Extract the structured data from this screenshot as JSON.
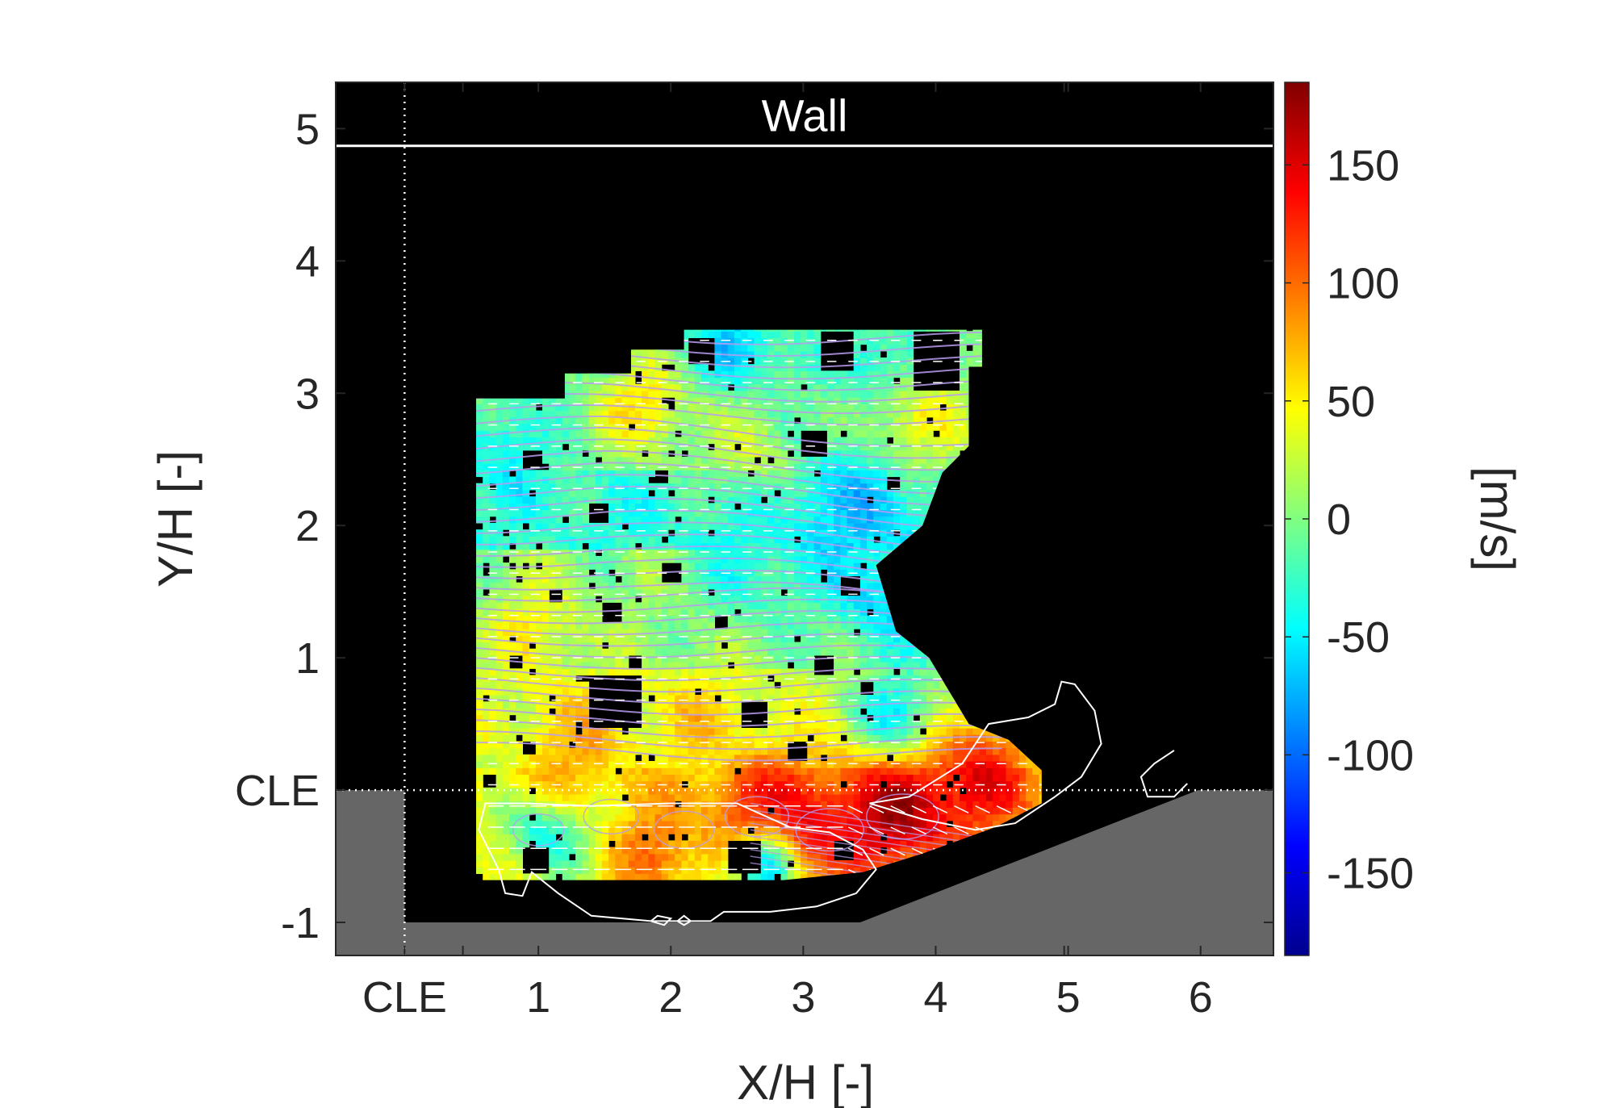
{
  "chart_data": {
    "type": "heatmap",
    "title": "",
    "xlabel": "X/H [-]",
    "ylabel": "Y/H [-]",
    "xlim": [
      -0.53,
      6.55
    ],
    "ylim": [
      -1.25,
      5.35
    ],
    "xticks": [
      {
        "value": -0.01,
        "label": "CLE"
      },
      {
        "value": 1,
        "label": "1"
      },
      {
        "value": 2,
        "label": "2"
      },
      {
        "value": 3,
        "label": "3"
      },
      {
        "value": 4,
        "label": "4"
      },
      {
        "value": 5,
        "label": "5"
      },
      {
        "value": 6,
        "label": "6"
      }
    ],
    "yticks": [
      {
        "value": -1,
        "label": "-1"
      },
      {
        "value": 0,
        "label": "CLE"
      },
      {
        "value": 1,
        "label": "1"
      },
      {
        "value": 2,
        "label": "2"
      },
      {
        "value": 3,
        "label": "3"
      },
      {
        "value": 4,
        "label": "4"
      },
      {
        "value": 5,
        "label": "5"
      }
    ],
    "wall": {
      "label": "Wall",
      "y": 4.87
    },
    "reference_lines": {
      "x": -0.01,
      "y": 0
    },
    "colorbar": {
      "label": "[m/s]",
      "limits": [
        -185,
        185
      ],
      "ticks": [
        -150,
        -100,
        -50,
        0,
        50,
        100,
        150
      ],
      "colormap": "jet"
    },
    "colors": {
      "background": "#000000",
      "solid": "#666666",
      "frame": "#262626",
      "streamlines": "#b89cf0",
      "vectors": "#ffffff",
      "contour": "#ffffff"
    },
    "field": {
      "x_range": [
        0.53,
        4.8
      ],
      "y_range": [
        -0.68,
        3.48
      ],
      "cell": 0.05,
      "outline": [
        [
          0.53,
          -0.68
        ],
        [
          0.53,
          2.96
        ],
        [
          1.2,
          2.96
        ],
        [
          1.2,
          3.15
        ],
        [
          1.7,
          3.15
        ],
        [
          1.7,
          3.33
        ],
        [
          2.1,
          3.33
        ],
        [
          2.1,
          3.48
        ],
        [
          4.35,
          3.48
        ],
        [
          4.35,
          3.2
        ],
        [
          4.25,
          3.2
        ],
        [
          4.25,
          2.6
        ],
        [
          4.05,
          2.4
        ],
        [
          3.9,
          2.0
        ],
        [
          3.55,
          1.7
        ],
        [
          3.7,
          1.2
        ],
        [
          3.95,
          1.0
        ],
        [
          4.25,
          0.5
        ],
        [
          4.55,
          0.38
        ],
        [
          4.8,
          0.15
        ],
        [
          4.8,
          -0.1
        ],
        [
          4.45,
          -0.28
        ],
        [
          3.9,
          -0.48
        ],
        [
          3.45,
          -0.62
        ],
        [
          2.85,
          -0.68
        ],
        [
          0.53,
          -0.68
        ]
      ],
      "bands": [
        {
          "y": [
            -0.68,
            -0.15
          ],
          "value": 45
        },
        {
          "y": [
            -0.15,
            0.15
          ],
          "value": 55
        },
        {
          "y": [
            0.15,
            0.9
          ],
          "value": 28
        },
        {
          "y": [
            0.9,
            1.8
          ],
          "value": 5
        },
        {
          "y": [
            1.8,
            2.4
          ],
          "value": -30
        },
        {
          "y": [
            2.4,
            3.48
          ],
          "value": -8
        }
      ],
      "features": [
        {
          "x": 4.3,
          "y": 0.08,
          "r": 0.45,
          "value": 140
        },
        {
          "x": 3.7,
          "y": -0.15,
          "r": 0.5,
          "value": 175
        },
        {
          "x": 3.0,
          "y": -0.3,
          "r": 0.45,
          "value": 150
        },
        {
          "x": 2.6,
          "y": -0.05,
          "r": 0.35,
          "value": 130
        },
        {
          "x": 1.9,
          "y": -0.45,
          "r": 0.35,
          "value": 100
        },
        {
          "x": 1.05,
          "y": -0.3,
          "r": 0.35,
          "value": -45
        },
        {
          "x": 2.7,
          "y": -0.6,
          "r": 0.25,
          "value": -60
        },
        {
          "x": 1.3,
          "y": 0.3,
          "r": 0.45,
          "value": 75
        },
        {
          "x": 2.2,
          "y": 0.5,
          "r": 0.4,
          "value": 60
        },
        {
          "x": 3.7,
          "y": 0.6,
          "r": 0.35,
          "value": -45
        },
        {
          "x": 3.6,
          "y": 1.5,
          "r": 0.45,
          "value": -60
        },
        {
          "x": 3.3,
          "y": 2.1,
          "r": 0.5,
          "value": -65
        },
        {
          "x": 2.6,
          "y": 1.7,
          "r": 0.4,
          "value": -40
        },
        {
          "x": 0.75,
          "y": 2.6,
          "r": 0.3,
          "value": -50
        },
        {
          "x": 1.8,
          "y": 2.9,
          "r": 0.35,
          "value": 60
        },
        {
          "x": 3.9,
          "y": 2.8,
          "r": 0.35,
          "value": 50
        },
        {
          "x": 2.5,
          "y": 3.35,
          "r": 0.3,
          "value": -70
        },
        {
          "x": 3.5,
          "y": 3.3,
          "r": 0.3,
          "value": -40
        },
        {
          "x": 1.0,
          "y": 1.2,
          "r": 0.35,
          "value": 50
        },
        {
          "x": 2.6,
          "y": 2.55,
          "r": 0.35,
          "value": 25
        }
      ],
      "holes": [
        [
          1.6,
          0.65,
          0.2
        ],
        [
          2.65,
          0.55,
          0.1
        ],
        [
          2.95,
          0.3,
          0.08
        ],
        [
          3.15,
          0.95,
          0.08
        ],
        [
          1.55,
          1.35,
          0.06
        ],
        [
          0.85,
          0.95,
          0.05
        ],
        [
          2.0,
          1.65,
          0.07
        ],
        [
          3.35,
          1.55,
          0.07
        ],
        [
          1.45,
          2.1,
          0.06
        ],
        [
          0.95,
          2.5,
          0.07
        ],
        [
          2.25,
          3.3,
          0.1
        ],
        [
          3.1,
          2.6,
          0.1
        ],
        [
          3.7,
          2.3,
          0.05
        ],
        [
          4.15,
          3.3,
          0.05
        ],
        [
          0.6,
          1.5,
          0.04
        ],
        [
          1.15,
          1.45,
          0.05
        ],
        [
          2.4,
          1.25,
          0.05
        ],
        [
          3.5,
          0.75,
          0.05
        ],
        [
          4.05,
          1.45,
          0.04
        ],
        [
          2.7,
          2.2,
          0.04
        ],
        [
          1.3,
          0.45,
          0.04
        ],
        [
          0.95,
          0.3,
          0.05
        ],
        [
          0.98,
          -0.55,
          0.1
        ],
        [
          2.55,
          -0.5,
          0.12
        ],
        [
          3.3,
          -0.45,
          0.08
        ],
        [
          1.95,
          2.35,
          0.05
        ],
        [
          2.95,
          1.9,
          0.04
        ],
        [
          1.75,
          0.95,
          0.05
        ],
        [
          3.85,
          0.55,
          0.04
        ],
        [
          0.65,
          0.05,
          0.05
        ]
      ]
    },
    "cutout_top": {
      "x": [
        3.12,
        4.62
      ],
      "y": [
        3.0,
        3.48
      ]
    },
    "solid_region": [
      [
        -0.53,
        -1.25
      ],
      [
        -0.53,
        0
      ],
      [
        -0.01,
        0
      ],
      [
        -0.01,
        -1
      ],
      [
        3.43,
        -1
      ],
      [
        5.98,
        0
      ],
      [
        6.55,
        0
      ],
      [
        6.55,
        -1.25
      ]
    ],
    "separation_contours": [
      [
        [
          0.7,
          -0.6
        ],
        [
          0.75,
          -0.78
        ],
        [
          0.88,
          -0.8
        ],
        [
          0.95,
          -0.62
        ],
        [
          1.15,
          -0.78
        ],
        [
          1.4,
          -0.95
        ],
        [
          1.85,
          -0.99
        ],
        [
          2.3,
          -0.99
        ],
        [
          2.4,
          -0.92
        ],
        [
          2.75,
          -0.92
        ],
        [
          3.1,
          -0.88
        ],
        [
          3.4,
          -0.78
        ],
        [
          3.55,
          -0.6
        ],
        [
          3.45,
          -0.45
        ],
        [
          3.2,
          -0.32
        ],
        [
          2.9,
          -0.28
        ],
        [
          2.5,
          -0.1
        ],
        [
          2.0,
          -0.1
        ],
        [
          1.4,
          -0.12
        ],
        [
          0.9,
          -0.1
        ],
        [
          0.6,
          -0.1
        ],
        [
          0.55,
          -0.3
        ],
        [
          0.7,
          -0.6
        ]
      ],
      [
        [
          3.5,
          -0.1
        ],
        [
          3.8,
          -0.05
        ],
        [
          4.2,
          0.2
        ],
        [
          4.4,
          0.5
        ],
        [
          4.7,
          0.55
        ],
        [
          4.9,
          0.65
        ],
        [
          4.95,
          0.82
        ],
        [
          5.05,
          0.8
        ],
        [
          5.2,
          0.6
        ],
        [
          5.25,
          0.35
        ],
        [
          5.1,
          0.1
        ],
        [
          4.9,
          -0.05
        ],
        [
          4.6,
          -0.25
        ],
        [
          4.3,
          -0.3
        ],
        [
          3.9,
          -0.22
        ],
        [
          3.5,
          -0.1
        ]
      ],
      [
        [
          5.8,
          0.3
        ],
        [
          5.65,
          0.2
        ],
        [
          5.55,
          0.1
        ],
        [
          5.6,
          -0.05
        ],
        [
          5.8,
          -0.05
        ],
        [
          5.9,
          0.05
        ]
      ],
      [
        [
          1.85,
          -0.99
        ],
        [
          1.9,
          -0.95
        ],
        [
          2.0,
          -0.97
        ],
        [
          1.95,
          -1.02
        ],
        [
          1.85,
          -0.99
        ]
      ],
      [
        [
          2.05,
          -0.99
        ],
        [
          2.1,
          -0.95
        ],
        [
          2.15,
          -0.99
        ],
        [
          2.1,
          -1.02
        ],
        [
          2.05,
          -0.99
        ]
      ]
    ]
  }
}
